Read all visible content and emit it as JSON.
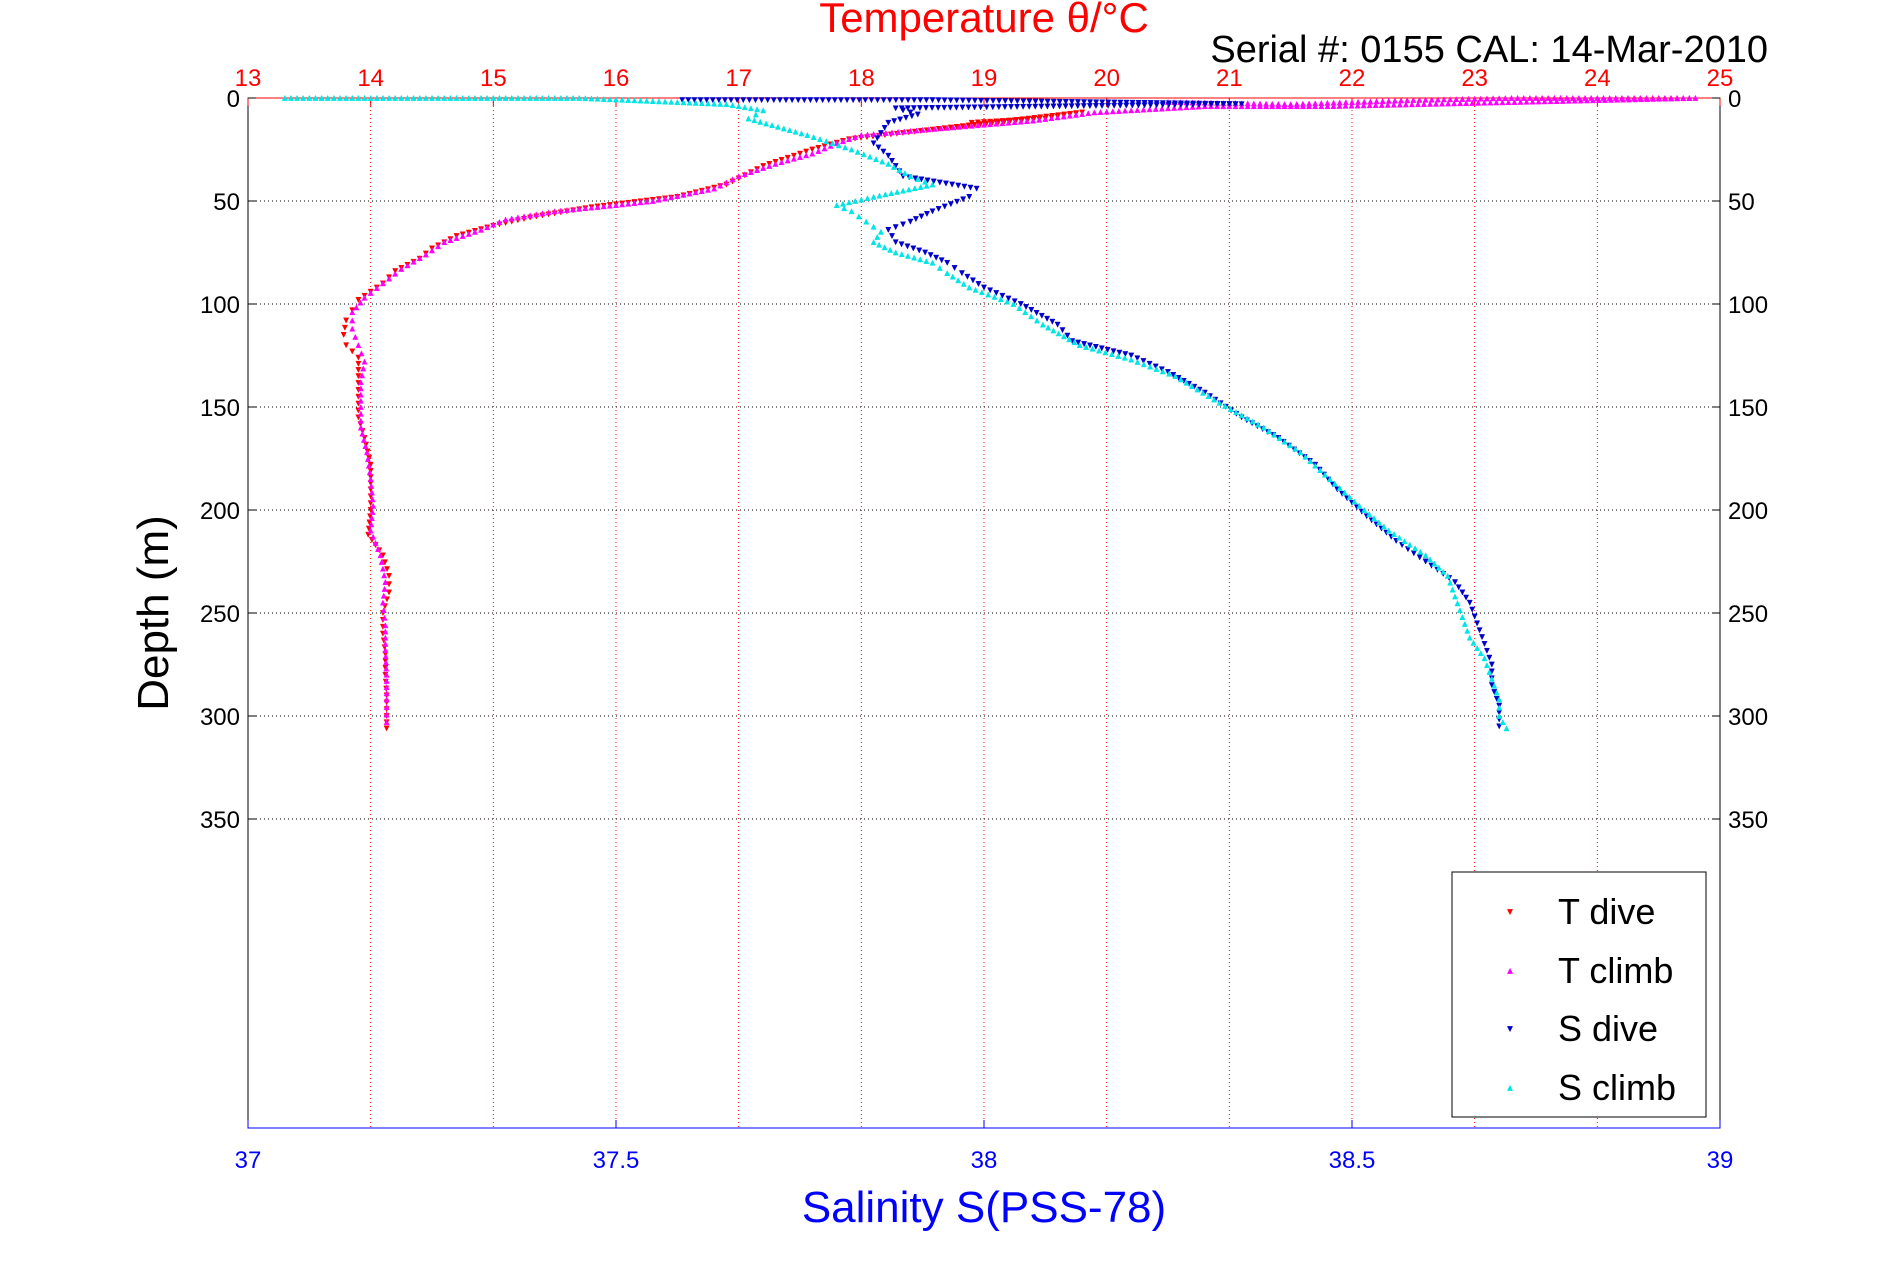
{
  "chart_data": {
    "type": "scatter",
    "title_top": "Temperature θ/°C",
    "xlabel_bottom": "Salinity S(PSS-78)",
    "ylabel": "Depth (m)",
    "annotation": "Serial #: 0155  CAL: 14-Mar-2010",
    "x_top_range": [
      13,
      25
    ],
    "x_top_ticks": [
      "13",
      "14",
      "15",
      "16",
      "17",
      "18",
      "19",
      "20",
      "21",
      "22",
      "23",
      "24",
      "25"
    ],
    "x_bottom_range": [
      37,
      39
    ],
    "x_bottom_ticks": [
      "37",
      "37.5",
      "38",
      "38.5",
      "39"
    ],
    "y_range": [
      0,
      500
    ],
    "y_reversed": true,
    "y_ticks": [
      "0",
      "50",
      "100",
      "150",
      "200",
      "250",
      "300",
      "350"
    ],
    "grid": true,
    "legend_position": "bottom-right",
    "colors": {
      "t_dive": "#ff0000",
      "t_climb": "#ff00ff",
      "s_dive": "#0000cc",
      "s_climb": "#00e5e5",
      "top_axis": "#ff0000",
      "bottom_axis": "#0000ff"
    },
    "series": [
      {
        "name": "T dive",
        "axis": "temperature",
        "marker": "triangle-down",
        "points": [
          [
            18.9,
            12
          ],
          [
            19.5,
            10
          ],
          [
            19.8,
            7
          ],
          [
            17.9,
            20
          ],
          [
            17.6,
            25
          ],
          [
            17.2,
            33
          ],
          [
            16.9,
            42
          ],
          [
            16.5,
            48
          ],
          [
            15.8,
            53
          ],
          [
            15.3,
            58
          ],
          [
            15.0,
            62
          ],
          [
            14.7,
            67
          ],
          [
            14.5,
            73
          ],
          [
            14.4,
            78
          ],
          [
            14.2,
            84
          ],
          [
            14.1,
            90
          ],
          [
            13.9,
            98
          ],
          [
            13.85,
            103
          ],
          [
            13.8,
            108
          ],
          [
            13.78,
            115
          ],
          [
            13.8,
            120
          ],
          [
            13.9,
            126
          ],
          [
            13.9,
            135
          ],
          [
            13.9,
            145
          ],
          [
            13.9,
            155
          ],
          [
            13.95,
            165
          ],
          [
            14.0,
            178
          ],
          [
            14.0,
            190
          ],
          [
            14.0,
            200
          ],
          [
            13.98,
            212
          ],
          [
            14.1,
            222
          ],
          [
            14.15,
            232
          ],
          [
            14.15,
            240
          ],
          [
            14.1,
            250
          ],
          [
            14.1,
            260
          ],
          [
            14.12,
            270
          ],
          [
            14.12,
            280
          ],
          [
            14.13,
            290
          ],
          [
            14.13,
            300
          ],
          [
            14.13,
            306
          ]
        ]
      },
      {
        "name": "T climb",
        "axis": "temperature",
        "marker": "triangle-up",
        "points": [
          [
            20.5,
            2
          ],
          [
            21.5,
            3
          ],
          [
            22.0,
            2
          ],
          [
            22.5,
            1
          ],
          [
            23.3,
            0
          ],
          [
            23.8,
            0
          ],
          [
            24.5,
            0
          ],
          [
            24.8,
            0
          ],
          [
            21.8,
            4
          ],
          [
            20.8,
            4
          ],
          [
            19.9,
            7
          ],
          [
            19.4,
            11
          ],
          [
            18.8,
            14
          ],
          [
            18.0,
            18
          ],
          [
            17.8,
            22
          ],
          [
            17.6,
            27
          ],
          [
            17.3,
            32
          ],
          [
            17.0,
            38
          ],
          [
            16.8,
            44
          ],
          [
            16.3,
            50
          ],
          [
            16.0,
            52
          ],
          [
            15.5,
            55
          ],
          [
            15.1,
            59
          ],
          [
            14.9,
            64
          ],
          [
            14.6,
            70
          ],
          [
            14.45,
            76
          ],
          [
            14.25,
            83
          ],
          [
            14.1,
            90
          ],
          [
            13.95,
            97
          ],
          [
            13.85,
            104
          ],
          [
            13.85,
            112
          ],
          [
            13.9,
            120
          ],
          [
            13.95,
            128
          ],
          [
            13.92,
            138
          ],
          [
            13.92,
            150
          ],
          [
            13.92,
            160
          ],
          [
            13.97,
            172
          ],
          [
            14.0,
            185
          ],
          [
            14.02,
            198
          ],
          [
            14.0,
            210
          ],
          [
            14.08,
            222
          ],
          [
            14.12,
            235
          ],
          [
            14.1,
            245
          ],
          [
            14.12,
            256
          ],
          [
            14.12,
            268
          ],
          [
            14.13,
            280
          ],
          [
            14.13,
            292
          ],
          [
            14.13,
            303
          ]
        ]
      },
      {
        "name": "S dive",
        "axis": "salinity",
        "marker": "triangle-down",
        "points": [
          [
            37.59,
            1
          ],
          [
            37.93,
            1
          ],
          [
            38.35,
            3
          ],
          [
            37.88,
            5
          ],
          [
            37.91,
            8
          ],
          [
            37.87,
            12
          ],
          [
            37.86,
            17
          ],
          [
            37.85,
            22
          ],
          [
            37.87,
            28
          ],
          [
            37.88,
            33
          ],
          [
            37.89,
            38
          ],
          [
            37.99,
            44
          ],
          [
            37.98,
            48
          ],
          [
            37.93,
            55
          ],
          [
            37.9,
            60
          ],
          [
            37.87,
            64
          ],
          [
            37.88,
            70
          ],
          [
            37.92,
            75
          ],
          [
            37.95,
            80
          ],
          [
            37.97,
            85
          ],
          [
            38.0,
            92
          ],
          [
            38.05,
            100
          ],
          [
            38.1,
            110
          ],
          [
            38.12,
            118
          ],
          [
            38.2,
            125
          ],
          [
            38.25,
            133
          ],
          [
            38.3,
            143
          ],
          [
            38.35,
            155
          ],
          [
            38.4,
            165
          ],
          [
            38.45,
            178
          ],
          [
            38.48,
            190
          ],
          [
            38.52,
            203
          ],
          [
            38.56,
            215
          ],
          [
            38.6,
            225
          ],
          [
            38.64,
            235
          ],
          [
            38.66,
            245
          ],
          [
            38.67,
            255
          ],
          [
            38.68,
            265
          ],
          [
            38.69,
            275
          ],
          [
            38.69,
            285
          ],
          [
            38.7,
            295
          ],
          [
            38.7,
            305
          ]
        ]
      },
      {
        "name": "S climb",
        "axis": "salinity",
        "marker": "triangle-up",
        "points": [
          [
            37.05,
            0
          ],
          [
            37.35,
            0
          ],
          [
            37.45,
            0
          ],
          [
            37.65,
            3
          ],
          [
            37.7,
            6
          ],
          [
            37.68,
            10
          ],
          [
            37.72,
            14
          ],
          [
            37.76,
            18
          ],
          [
            37.82,
            25
          ],
          [
            37.87,
            32
          ],
          [
            37.9,
            38
          ],
          [
            37.93,
            42
          ],
          [
            37.85,
            48
          ],
          [
            37.8,
            52
          ],
          [
            37.82,
            55
          ],
          [
            37.84,
            60
          ],
          [
            37.86,
            65
          ],
          [
            37.85,
            70
          ],
          [
            37.88,
            75
          ],
          [
            37.93,
            80
          ],
          [
            37.95,
            85
          ],
          [
            37.98,
            92
          ],
          [
            38.04,
            100
          ],
          [
            38.08,
            110
          ],
          [
            38.13,
            120
          ],
          [
            38.2,
            127
          ],
          [
            38.26,
            135
          ],
          [
            38.32,
            148
          ],
          [
            38.38,
            160
          ],
          [
            38.43,
            172
          ],
          [
            38.47,
            185
          ],
          [
            38.51,
            198
          ],
          [
            38.55,
            210
          ],
          [
            38.6,
            222
          ],
          [
            38.63,
            232
          ],
          [
            38.64,
            242
          ],
          [
            38.65,
            252
          ],
          [
            38.66,
            262
          ],
          [
            38.68,
            272
          ],
          [
            38.69,
            282
          ],
          [
            38.7,
            292
          ],
          [
            38.7,
            300
          ],
          [
            38.71,
            306
          ]
        ]
      }
    ]
  }
}
